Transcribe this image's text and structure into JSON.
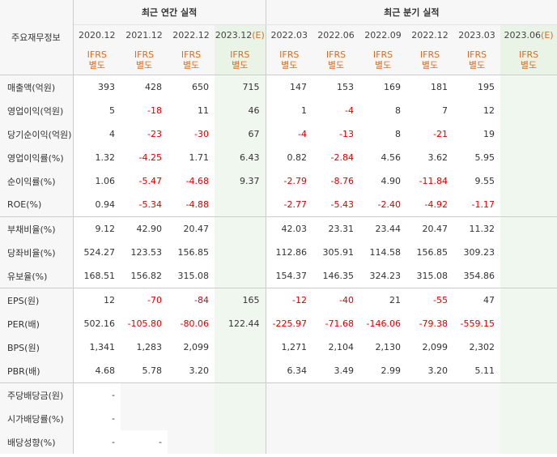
{
  "headers": {
    "corner": "주요재무정보",
    "annual_group": "최근 연간 실적",
    "quarter_group": "최근 분기 실적",
    "periods": [
      {
        "date": "2020.12",
        "est": ""
      },
      {
        "date": "2021.12",
        "est": ""
      },
      {
        "date": "2022.12",
        "est": ""
      },
      {
        "date": "2023.12",
        "est": "(E)"
      },
      {
        "date": "2022.03",
        "est": ""
      },
      {
        "date": "2022.06",
        "est": ""
      },
      {
        "date": "2022.09",
        "est": ""
      },
      {
        "date": "2022.12",
        "est": ""
      },
      {
        "date": "2023.03",
        "est": ""
      },
      {
        "date": "2023.06",
        "est": "(E)"
      }
    ],
    "standard_line1": "IFRS",
    "standard_line2": "별도"
  },
  "rows": [
    {
      "label": "매출액(억원)",
      "values": [
        "393",
        "428",
        "650",
        "715",
        "147",
        "153",
        "169",
        "181",
        "195",
        ""
      ]
    },
    {
      "label": "영업이익(억원)",
      "values": [
        "5",
        "-18",
        "11",
        "46",
        "1",
        "-4",
        "8",
        "7",
        "12",
        ""
      ]
    },
    {
      "label": "당기순이익(억원)",
      "values": [
        "4",
        "-23",
        "-30",
        "67",
        "-4",
        "-13",
        "8",
        "-21",
        "19",
        ""
      ]
    },
    {
      "label": "영업이익률(%)",
      "values": [
        "1.32",
        "-4.25",
        "1.71",
        "6.43",
        "0.82",
        "-2.84",
        "4.56",
        "3.62",
        "5.95",
        ""
      ]
    },
    {
      "label": "순이익률(%)",
      "values": [
        "1.06",
        "-5.47",
        "-4.68",
        "9.37",
        "-2.79",
        "-8.76",
        "4.90",
        "-11.84",
        "9.55",
        ""
      ]
    },
    {
      "label": "ROE(%)",
      "values": [
        "0.94",
        "-5.34",
        "-4.88",
        "",
        "-2.77",
        "-5.43",
        "-2.40",
        "-4.92",
        "-1.17",
        ""
      ]
    },
    {
      "label": "부채비율(%)",
      "values": [
        "9.12",
        "42.90",
        "20.47",
        "",
        "42.03",
        "23.31",
        "23.44",
        "20.47",
        "11.32",
        ""
      ]
    },
    {
      "label": "당좌비율(%)",
      "values": [
        "524.27",
        "123.53",
        "156.85",
        "",
        "112.86",
        "305.91",
        "114.58",
        "156.85",
        "309.23",
        ""
      ]
    },
    {
      "label": "유보율(%)",
      "values": [
        "168.51",
        "156.82",
        "315.08",
        "",
        "154.37",
        "146.35",
        "324.23",
        "315.08",
        "354.86",
        ""
      ]
    },
    {
      "label": "EPS(원)",
      "values": [
        "12",
        "-70",
        "-84",
        "165",
        "-12",
        "-40",
        "21",
        "-55",
        "47",
        ""
      ]
    },
    {
      "label": "PER(배)",
      "values": [
        "502.16",
        "-105.80",
        "-80.06",
        "122.44",
        "-225.97",
        "-71.68",
        "-146.06",
        "-79.38",
        "-559.15",
        ""
      ]
    },
    {
      "label": "BPS(원)",
      "values": [
        "1,341",
        "1,283",
        "2,099",
        "",
        "1,271",
        "2,104",
        "2,130",
        "2,099",
        "2,302",
        ""
      ]
    },
    {
      "label": "PBR(배)",
      "values": [
        "4.68",
        "5.78",
        "3.20",
        "",
        "6.34",
        "3.49",
        "2.99",
        "3.20",
        "5.11",
        ""
      ]
    },
    {
      "label": "주당배당금(원)",
      "values": [
        "-",
        "",
        "",
        "",
        "",
        "",
        "",
        "",
        "",
        ""
      ]
    },
    {
      "label": "시가배당률(%)",
      "values": [
        "-",
        "",
        "",
        "",
        "",
        "",
        "",
        "",
        "",
        ""
      ]
    },
    {
      "label": "배당성향(%)",
      "values": [
        "-",
        "-",
        "",
        "",
        "",
        "",
        "",
        "",
        "",
        ""
      ]
    }
  ]
}
